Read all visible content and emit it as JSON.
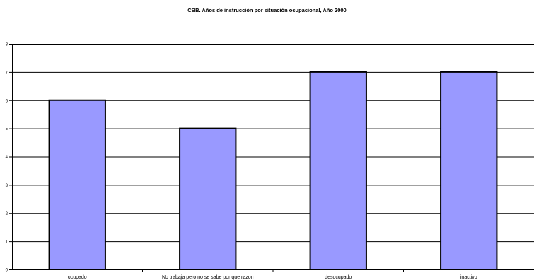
{
  "chart_data": {
    "type": "bar",
    "title": "CBB. Años de instrucción por situación ocupacional, Año 2000",
    "categories": [
      "ocupado",
      "No trabaja pero no se sabe por que razon",
      "desocupado",
      "inactivo"
    ],
    "values": [
      6,
      5,
      7,
      7
    ],
    "ylim": [
      0,
      8
    ],
    "yticks": [
      "0",
      "1",
      "2",
      "3",
      "4",
      "5",
      "6",
      "7",
      "8"
    ],
    "grid": true,
    "legend": "none",
    "colors": {
      "bar_fill": "#9999ff",
      "bar_stroke": "#000000",
      "grid": "#000000"
    }
  }
}
